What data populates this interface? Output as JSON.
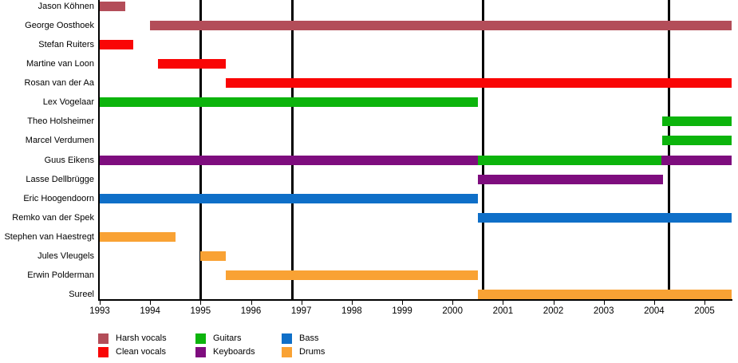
{
  "chart_data": {
    "type": "timeline",
    "description": "Band line-up timeline (gantt-style), one row per member, colored by role",
    "x_axis": {
      "start": 1993,
      "end": 2005.54,
      "tick_years": [
        1993,
        1994,
        1995,
        1996,
        1997,
        1998,
        1999,
        2000,
        2001,
        2002,
        2003,
        2004,
        2005
      ]
    },
    "event_lines": {
      "years": [
        1995.0,
        1996.82,
        2000.61,
        2004.29
      ],
      "color": "#000000"
    },
    "roles": {
      "harsh": {
        "label": "Harsh vocals",
        "color": "#b34d59"
      },
      "clean": {
        "label": "Clean vocals",
        "color": "#f90606"
      },
      "guitars": {
        "label": "Guitars",
        "color": "#0cb40c"
      },
      "keyboards": {
        "label": "Keyboards",
        "color": "#7e0d7e"
      },
      "bass": {
        "label": "Bass",
        "color": "#0f6fc8"
      },
      "drums": {
        "label": "Drums",
        "color": "#f9a234"
      }
    },
    "members": [
      {
        "name": "Jason Köhnen",
        "segments": [
          {
            "role": "harsh",
            "start": 1993,
            "end": 1993.5
          }
        ]
      },
      {
        "name": "George Oosthoek",
        "segments": [
          {
            "role": "harsh",
            "start": 1994,
            "end": 2005.54
          }
        ]
      },
      {
        "name": "Stefan Ruiters",
        "segments": [
          {
            "role": "clean",
            "start": 1993,
            "end": 1993.67
          }
        ]
      },
      {
        "name": "Martine van Loon",
        "segments": [
          {
            "role": "clean",
            "start": 1994.15,
            "end": 1995.5
          }
        ]
      },
      {
        "name": "Rosan van der Aa",
        "segments": [
          {
            "role": "clean",
            "start": 1995.5,
            "end": 2005.54
          }
        ]
      },
      {
        "name": "Lex Vogelaar",
        "segments": [
          {
            "role": "guitars",
            "start": 1993,
            "end": 2000.5
          }
        ]
      },
      {
        "name": "Theo Holsheimer",
        "segments": [
          {
            "role": "guitars",
            "start": 2004.16,
            "end": 2005.54
          }
        ]
      },
      {
        "name": "Marcel Verdumen",
        "segments": [
          {
            "role": "guitars",
            "start": 2004.16,
            "end": 2005.54
          }
        ]
      },
      {
        "name": "Guus Eikens",
        "segments": [
          {
            "role": "keyboards",
            "start": 1993,
            "end": 2000.5
          },
          {
            "role": "guitars",
            "start": 2000.5,
            "end": 2004.14
          },
          {
            "role": "keyboards",
            "start": 2004.14,
            "end": 2005.54
          }
        ]
      },
      {
        "name": "Lasse Dellbrügge",
        "segments": [
          {
            "role": "keyboards",
            "start": 2000.5,
            "end": 2004.17
          }
        ]
      },
      {
        "name": "Eric Hoogendoorn",
        "segments": [
          {
            "role": "bass",
            "start": 1993,
            "end": 2000.5
          }
        ]
      },
      {
        "name": "Remko van der Spek",
        "segments": [
          {
            "role": "bass",
            "start": 2000.5,
            "end": 2005.54
          }
        ]
      },
      {
        "name": "Stephen van Haestregt",
        "segments": [
          {
            "role": "drums",
            "start": 1993,
            "end": 1994.5
          }
        ]
      },
      {
        "name": "Jules Vleugels",
        "segments": [
          {
            "role": "drums",
            "start": 1995,
            "end": 1995.5
          }
        ]
      },
      {
        "name": "Erwin Polderman",
        "segments": [
          {
            "role": "drums",
            "start": 1995.5,
            "end": 2000.5
          }
        ]
      },
      {
        "name": "Sureel",
        "segments": [
          {
            "role": "drums",
            "start": 2000.5,
            "end": 2005.54
          }
        ]
      }
    ],
    "legend": {
      "columns": [
        [
          "harsh",
          "clean"
        ],
        [
          "guitars",
          "keyboards"
        ],
        [
          "bass",
          "drums"
        ]
      ]
    }
  }
}
